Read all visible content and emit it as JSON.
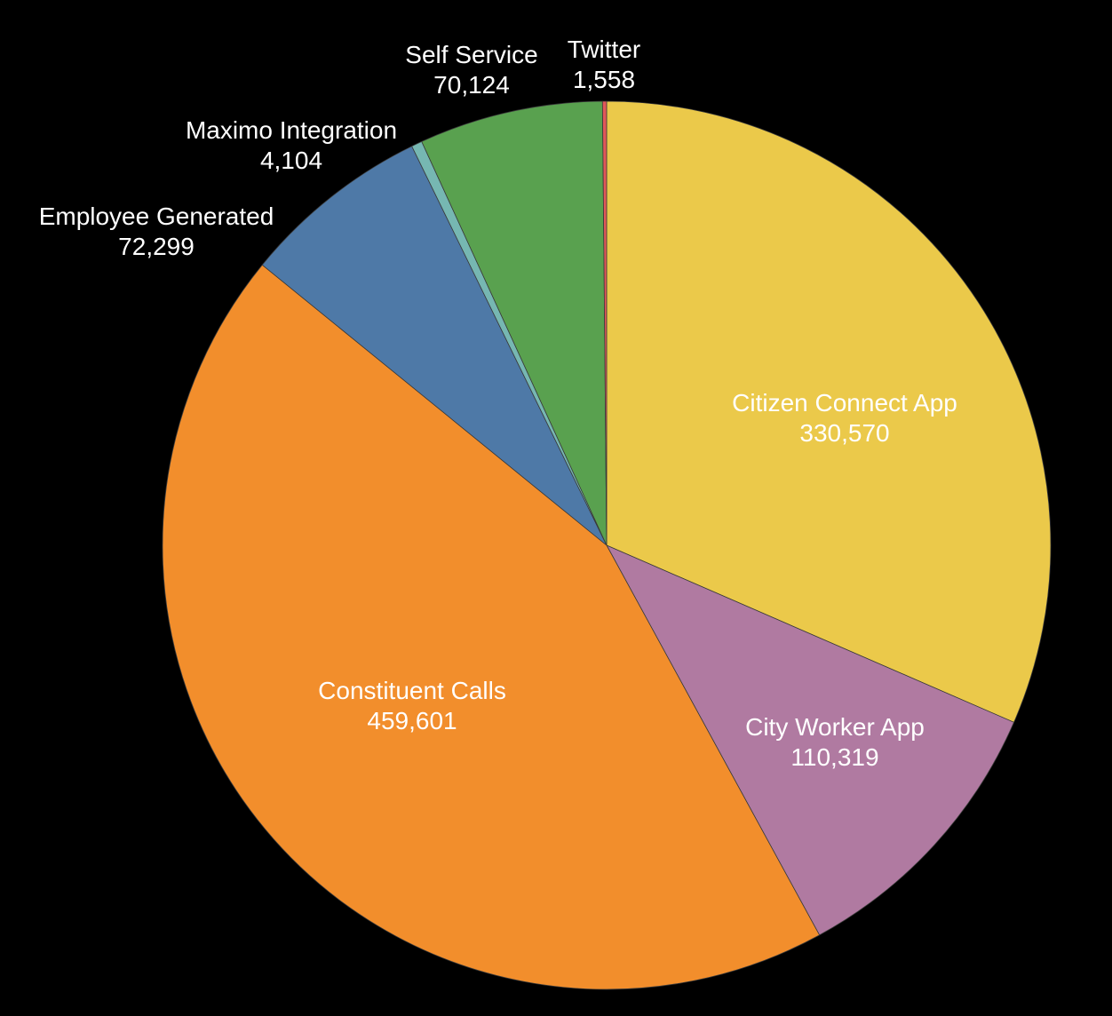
{
  "chart_data": {
    "type": "pie",
    "start_angle_deg": 0,
    "direction": "clockwise",
    "background": "#000000",
    "slices": [
      {
        "label": "Citizen Connect App",
        "value_text": "330,570",
        "value": 330570,
        "color": "#EBC94A"
      },
      {
        "label": "City Worker App",
        "value_text": "110,319",
        "value": 110319,
        "color": "#B07AA1"
      },
      {
        "label": "Constituent Calls",
        "value_text": "459,601",
        "value": 459601,
        "color": "#F28E2C"
      },
      {
        "label": "Employee Generated",
        "value_text": "72,299",
        "value": 72299,
        "color": "#4E79A7"
      },
      {
        "label": "Maximo Integration",
        "value_text": "4,104",
        "value": 4104,
        "color": "#76B7B2"
      },
      {
        "label": "Self Service",
        "value_text": "70,124",
        "value": 70124,
        "color": "#59A14F"
      },
      {
        "label": "Twitter",
        "value_text": "1,558",
        "value": 1558,
        "color": "#E15759"
      }
    ]
  }
}
